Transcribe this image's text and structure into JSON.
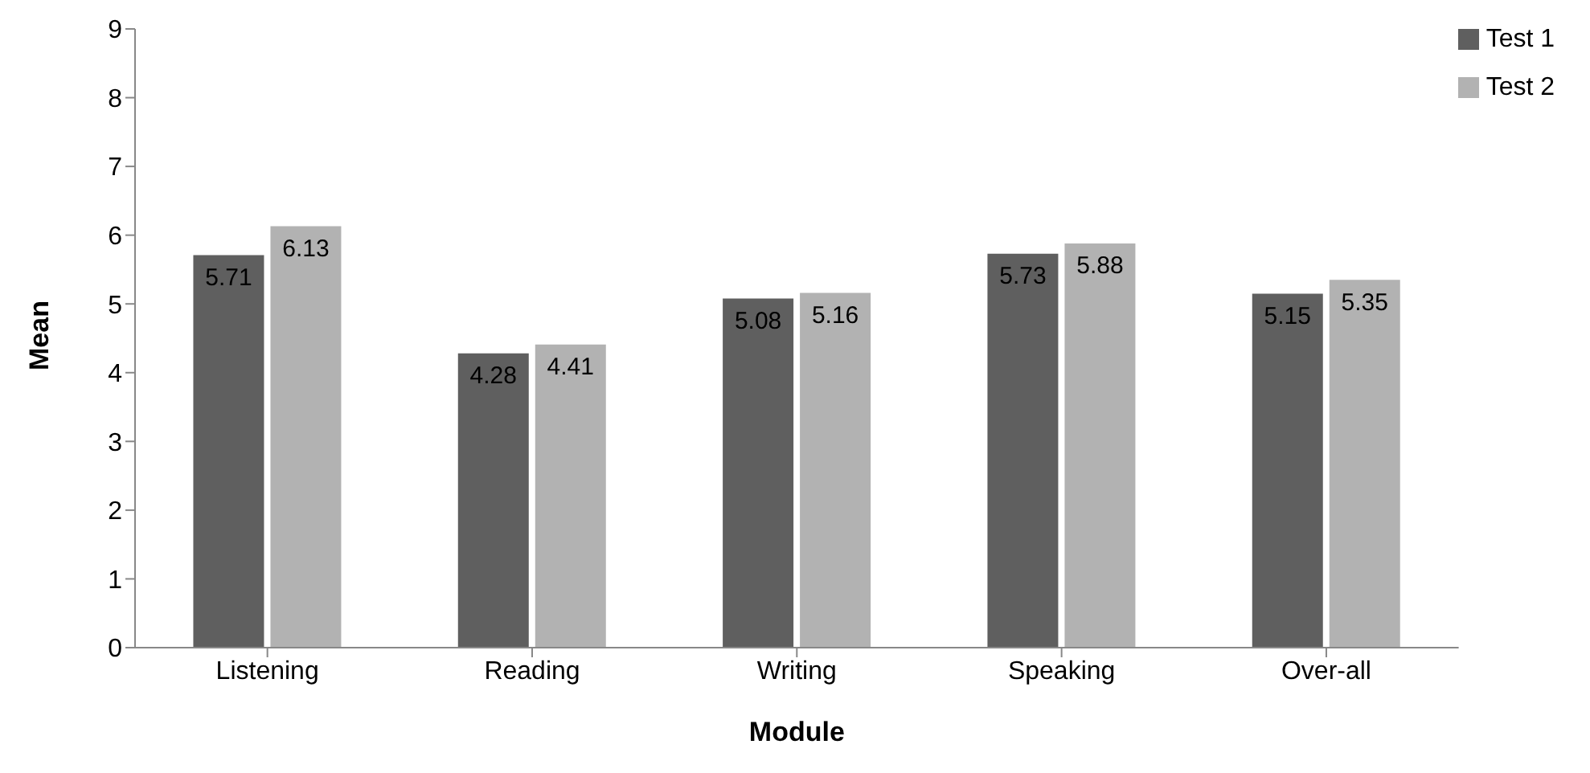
{
  "chart_data": {
    "type": "bar",
    "xlabel": "Module",
    "ylabel": "Mean",
    "categories": [
      "Listening",
      "Reading",
      "Writing",
      "Speaking",
      "Over-all"
    ],
    "series": [
      {
        "name": "Test 1",
        "color": "#5f5f5f",
        "values": [
          5.71,
          4.28,
          5.08,
          5.73,
          5.15
        ]
      },
      {
        "name": "Test 2",
        "color": "#b2b2b2",
        "values": [
          6.13,
          4.41,
          5.16,
          5.88,
          5.35
        ]
      }
    ],
    "ylim": [
      0,
      9
    ],
    "yticks": [
      0,
      1,
      2,
      3,
      4,
      5,
      6,
      7,
      8,
      9
    ],
    "grid": false,
    "legend": "top right",
    "data_labels": true
  }
}
